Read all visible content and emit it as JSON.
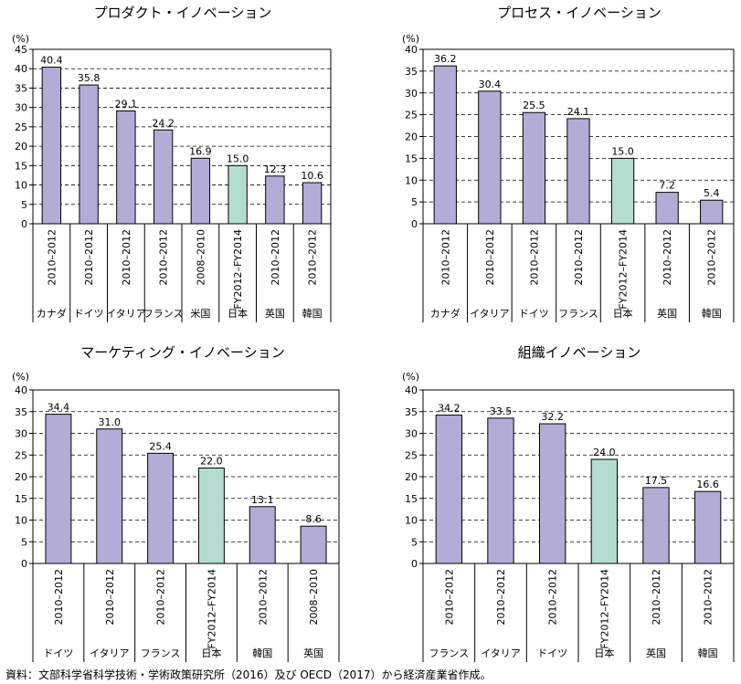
{
  "source_note": "資料：文部科学省科学技術・学術政策研究所（2016）及び OECD（2017）から経済産業省作成。",
  "colors": {
    "default_bar": "#b3acd6",
    "japan_bar": "#b5dcd0",
    "axis": "#000000",
    "grid": "#000000"
  },
  "chart_data": [
    {
      "type": "bar",
      "title": "プロダクト・イノベーション",
      "ylabel": "(%)",
      "ylim": [
        0,
        45
      ],
      "yticks": [
        0,
        5,
        10,
        15,
        20,
        25,
        30,
        35,
        40,
        45
      ],
      "grid": "horizontal dashed",
      "categories": [
        "カナダ",
        "ドイツ",
        "イタリア",
        "フランス",
        "米国",
        "日本",
        "英国",
        "韓国"
      ],
      "periods": [
        "2010–2012",
        "2010–2012",
        "2010–2012",
        "2010–2012",
        "2008–2010",
        "FY2012–FY2014",
        "2010–2012",
        "2010–2012"
      ],
      "values": [
        40.4,
        35.8,
        29.1,
        24.2,
        16.9,
        15.0,
        12.3,
        10.6
      ],
      "value_labels": [
        "40.4",
        "35.8",
        "29.1",
        "24.2",
        "16.9",
        "15.0",
        "12.3",
        "10.6"
      ],
      "highlight_index": 5
    },
    {
      "type": "bar",
      "title": "プロセス・イノベーション",
      "ylabel": "(%)",
      "ylim": [
        0,
        40
      ],
      "yticks": [
        0,
        5,
        10,
        15,
        20,
        25,
        30,
        35,
        40
      ],
      "grid": "horizontal dashed",
      "categories": [
        "カナダ",
        "イタリア",
        "ドイツ",
        "フランス",
        "日本",
        "英国",
        "韓国"
      ],
      "periods": [
        "2010–2012",
        "2010–2012",
        "2010–2012",
        "2010–2012",
        "FY2012–FY2014",
        "2010–2012",
        "2010–2012"
      ],
      "values": [
        36.2,
        30.4,
        25.5,
        24.1,
        15.0,
        7.2,
        5.4
      ],
      "value_labels": [
        "36.2",
        "30.4",
        "25.5",
        "24.1",
        "15.0",
        "7.2",
        "5.4"
      ],
      "highlight_index": 4
    },
    {
      "type": "bar",
      "title": "マーケティング・イノベーション",
      "ylabel": "(%)",
      "ylim": [
        0,
        40
      ],
      "yticks": [
        0,
        5,
        10,
        15,
        20,
        25,
        30,
        35,
        40
      ],
      "grid": "horizontal dashed",
      "categories": [
        "ドイツ",
        "イタリア",
        "フランス",
        "日本",
        "韓国",
        "英国"
      ],
      "periods": [
        "2010–2012",
        "2010–2012",
        "2010–2012",
        "FY2012–FY2014",
        "2010–2012",
        "2008–2010"
      ],
      "values": [
        34.4,
        31.0,
        25.4,
        22.0,
        13.1,
        8.6
      ],
      "value_labels": [
        "34.4",
        "31.0",
        "25.4",
        "22.0",
        "13.1",
        "8.6"
      ],
      "highlight_index": 3
    },
    {
      "type": "bar",
      "title": "組織イノベーション",
      "ylabel": "(%)",
      "ylim": [
        0,
        40
      ],
      "yticks": [
        0,
        5,
        10,
        15,
        20,
        25,
        30,
        35,
        40
      ],
      "grid": "horizontal dashed",
      "categories": [
        "フランス",
        "イタリア",
        "ドイツ",
        "日本",
        "英国",
        "韓国"
      ],
      "periods": [
        "2010–2012",
        "2010–2012",
        "2010–2012",
        "FY2012–FY2014",
        "2010–2012",
        "2010–2012"
      ],
      "values": [
        34.2,
        33.5,
        32.2,
        24.0,
        17.5,
        16.6
      ],
      "value_labels": [
        "34.2",
        "33.5",
        "32.2",
        "24.0",
        "17.5",
        "16.6"
      ],
      "highlight_index": 3
    }
  ]
}
